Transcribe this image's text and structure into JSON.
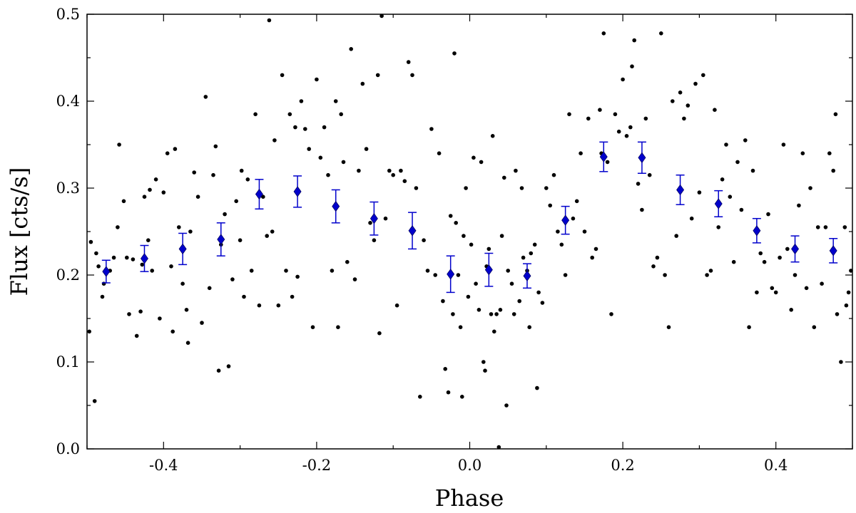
{
  "chart_data": {
    "type": "scatter",
    "xlabel": "Phase",
    "ylabel": "Flux [cts/s]",
    "xlim": [
      -0.5,
      0.5
    ],
    "ylim": [
      0.0,
      0.5
    ],
    "xticks": [
      "-0.4",
      "-0.2",
      "0.0",
      "0.2",
      "0.4"
    ],
    "yticks": [
      "0.0",
      "0.1",
      "0.2",
      "0.3",
      "0.4",
      "0.5"
    ],
    "grid": false,
    "series": [
      {
        "marker": "dot",
        "color": "#000000",
        "points": [
          [
            -0.497,
            0.135
          ],
          [
            -0.495,
            0.238
          ],
          [
            -0.49,
            0.055
          ],
          [
            -0.488,
            0.225
          ],
          [
            -0.485,
            0.21
          ],
          [
            -0.48,
            0.175
          ],
          [
            -0.478,
            0.19
          ],
          [
            -0.47,
            0.205
          ],
          [
            -0.465,
            0.22
          ],
          [
            -0.46,
            0.255
          ],
          [
            -0.458,
            0.35
          ],
          [
            -0.452,
            0.285
          ],
          [
            -0.448,
            0.22
          ],
          [
            -0.445,
            0.155
          ],
          [
            -0.44,
            0.218
          ],
          [
            -0.435,
            0.13
          ],
          [
            -0.43,
            0.158
          ],
          [
            -0.428,
            0.212
          ],
          [
            -0.425,
            0.29
          ],
          [
            -0.42,
            0.24
          ],
          [
            -0.418,
            0.298
          ],
          [
            -0.415,
            0.205
          ],
          [
            -0.41,
            0.31
          ],
          [
            -0.405,
            0.15
          ],
          [
            -0.4,
            0.295
          ],
          [
            -0.395,
            0.34
          ],
          [
            -0.39,
            0.21
          ],
          [
            -0.388,
            0.135
          ],
          [
            -0.385,
            0.345
          ],
          [
            -0.38,
            0.255
          ],
          [
            -0.375,
            0.19
          ],
          [
            -0.37,
            0.16
          ],
          [
            -0.368,
            0.122
          ],
          [
            -0.365,
            0.25
          ],
          [
            -0.36,
            0.318
          ],
          [
            -0.355,
            0.29
          ],
          [
            -0.35,
            0.145
          ],
          [
            -0.345,
            0.405
          ],
          [
            -0.34,
            0.185
          ],
          [
            -0.335,
            0.315
          ],
          [
            -0.332,
            0.348
          ],
          [
            -0.328,
            0.09
          ],
          [
            -0.325,
            0.235
          ],
          [
            -0.32,
            0.27
          ],
          [
            -0.315,
            0.095
          ],
          [
            -0.31,
            0.195
          ],
          [
            -0.305,
            0.285
          ],
          [
            -0.3,
            0.24
          ],
          [
            -0.298,
            0.32
          ],
          [
            -0.295,
            0.175
          ],
          [
            -0.29,
            0.31
          ],
          [
            -0.285,
            0.205
          ],
          [
            -0.28,
            0.385
          ],
          [
            -0.275,
            0.165
          ],
          [
            -0.27,
            0.29
          ],
          [
            -0.265,
            0.245
          ],
          [
            -0.262,
            0.493
          ],
          [
            -0.258,
            0.25
          ],
          [
            -0.255,
            0.355
          ],
          [
            -0.25,
            0.165
          ],
          [
            -0.245,
            0.43
          ],
          [
            -0.24,
            0.205
          ],
          [
            -0.235,
            0.385
          ],
          [
            -0.232,
            0.175
          ],
          [
            -0.228,
            0.37
          ],
          [
            -0.225,
            0.198
          ],
          [
            -0.22,
            0.4
          ],
          [
            -0.215,
            0.368
          ],
          [
            -0.21,
            0.345
          ],
          [
            -0.205,
            0.14
          ],
          [
            -0.2,
            0.425
          ],
          [
            -0.195,
            0.335
          ],
          [
            -0.19,
            0.37
          ],
          [
            -0.185,
            0.315
          ],
          [
            -0.18,
            0.205
          ],
          [
            -0.175,
            0.4
          ],
          [
            -0.172,
            0.14
          ],
          [
            -0.168,
            0.385
          ],
          [
            -0.165,
            0.33
          ],
          [
            -0.16,
            0.215
          ],
          [
            -0.155,
            0.46
          ],
          [
            -0.15,
            0.195
          ],
          [
            -0.145,
            0.32
          ],
          [
            -0.14,
            0.42
          ],
          [
            -0.135,
            0.345
          ],
          [
            -0.13,
            0.26
          ],
          [
            -0.125,
            0.24
          ],
          [
            -0.12,
            0.43
          ],
          [
            -0.118,
            0.133
          ],
          [
            -0.115,
            0.498
          ],
          [
            -0.11,
            0.265
          ],
          [
            -0.105,
            0.32
          ],
          [
            -0.1,
            0.315
          ],
          [
            -0.095,
            0.165
          ],
          [
            -0.09,
            0.32
          ],
          [
            -0.085,
            0.308
          ],
          [
            -0.08,
            0.445
          ],
          [
            -0.075,
            0.43
          ],
          [
            -0.07,
            0.3
          ],
          [
            -0.065,
            0.06
          ],
          [
            -0.06,
            0.24
          ],
          [
            -0.055,
            0.205
          ],
          [
            -0.05,
            0.368
          ],
          [
            -0.045,
            0.2
          ],
          [
            -0.04,
            0.34
          ],
          [
            -0.035,
            0.17
          ],
          [
            -0.032,
            0.092
          ],
          [
            -0.028,
            0.065
          ],
          [
            -0.025,
            0.268
          ],
          [
            -0.022,
            0.155
          ],
          [
            -0.02,
            0.455
          ],
          [
            -0.018,
            0.26
          ],
          [
            -0.015,
            0.2
          ],
          [
            -0.012,
            0.14
          ],
          [
            -0.01,
            0.06
          ],
          [
            -0.008,
            0.245
          ],
          [
            -0.005,
            0.3
          ],
          [
            -0.002,
            0.175
          ],
          [
            0.002,
            0.235
          ],
          [
            0.005,
            0.335
          ],
          [
            0.008,
            0.19
          ],
          [
            0.012,
            0.16
          ],
          [
            0.015,
            0.33
          ],
          [
            0.018,
            0.1
          ],
          [
            0.02,
            0.09
          ],
          [
            0.022,
            0.21
          ],
          [
            0.025,
            0.23
          ],
          [
            0.028,
            0.155
          ],
          [
            0.03,
            0.36
          ],
          [
            0.032,
            0.135
          ],
          [
            0.035,
            0.155
          ],
          [
            0.038,
            0.002
          ],
          [
            0.04,
            0.16
          ],
          [
            0.042,
            0.245
          ],
          [
            0.045,
            0.312
          ],
          [
            0.048,
            0.05
          ],
          [
            0.05,
            0.205
          ],
          [
            0.055,
            0.19
          ],
          [
            0.058,
            0.155
          ],
          [
            0.06,
            0.32
          ],
          [
            0.065,
            0.17
          ],
          [
            0.068,
            0.3
          ],
          [
            0.07,
            0.22
          ],
          [
            0.075,
            0.205
          ],
          [
            0.078,
            0.14
          ],
          [
            0.08,
            0.225
          ],
          [
            0.085,
            0.235
          ],
          [
            0.088,
            0.07
          ],
          [
            0.09,
            0.18
          ],
          [
            0.095,
            0.168
          ],
          [
            0.1,
            0.3
          ],
          [
            0.105,
            0.28
          ],
          [
            0.11,
            0.315
          ],
          [
            0.115,
            0.25
          ],
          [
            0.12,
            0.235
          ],
          [
            0.125,
            0.2
          ],
          [
            0.13,
            0.385
          ],
          [
            0.135,
            0.265
          ],
          [
            0.14,
            0.285
          ],
          [
            0.145,
            0.34
          ],
          [
            0.15,
            0.25
          ],
          [
            0.155,
            0.38
          ],
          [
            0.16,
            0.22
          ],
          [
            0.165,
            0.23
          ],
          [
            0.17,
            0.39
          ],
          [
            0.172,
            0.34
          ],
          [
            0.175,
            0.478
          ],
          [
            0.18,
            0.33
          ],
          [
            0.185,
            0.155
          ],
          [
            0.19,
            0.385
          ],
          [
            0.195,
            0.365
          ],
          [
            0.2,
            0.425
          ],
          [
            0.205,
            0.36
          ],
          [
            0.21,
            0.37
          ],
          [
            0.212,
            0.44
          ],
          [
            0.215,
            0.47
          ],
          [
            0.22,
            0.305
          ],
          [
            0.225,
            0.275
          ],
          [
            0.23,
            0.38
          ],
          [
            0.235,
            0.315
          ],
          [
            0.24,
            0.21
          ],
          [
            0.245,
            0.22
          ],
          [
            0.25,
            0.478
          ],
          [
            0.255,
            0.2
          ],
          [
            0.26,
            0.14
          ],
          [
            0.265,
            0.4
          ],
          [
            0.27,
            0.245
          ],
          [
            0.275,
            0.41
          ],
          [
            0.28,
            0.38
          ],
          [
            0.285,
            0.395
          ],
          [
            0.29,
            0.265
          ],
          [
            0.295,
            0.42
          ],
          [
            0.3,
            0.295
          ],
          [
            0.305,
            0.43
          ],
          [
            0.31,
            0.2
          ],
          [
            0.315,
            0.205
          ],
          [
            0.32,
            0.39
          ],
          [
            0.325,
            0.255
          ],
          [
            0.33,
            0.31
          ],
          [
            0.335,
            0.35
          ],
          [
            0.34,
            0.29
          ],
          [
            0.345,
            0.215
          ],
          [
            0.35,
            0.33
          ],
          [
            0.355,
            0.275
          ],
          [
            0.36,
            0.355
          ],
          [
            0.365,
            0.14
          ],
          [
            0.37,
            0.32
          ],
          [
            0.375,
            0.18
          ],
          [
            0.38,
            0.225
          ],
          [
            0.385,
            0.215
          ],
          [
            0.39,
            0.27
          ],
          [
            0.395,
            0.185
          ],
          [
            0.4,
            0.18
          ],
          [
            0.405,
            0.22
          ],
          [
            0.41,
            0.35
          ],
          [
            0.415,
            0.23
          ],
          [
            0.42,
            0.16
          ],
          [
            0.425,
            0.2
          ],
          [
            0.43,
            0.28
          ],
          [
            0.435,
            0.34
          ],
          [
            0.44,
            0.185
          ],
          [
            0.445,
            0.3
          ],
          [
            0.45,
            0.14
          ],
          [
            0.455,
            0.255
          ],
          [
            0.46,
            0.19
          ],
          [
            0.465,
            0.255
          ],
          [
            0.47,
            0.34
          ],
          [
            0.475,
            0.32
          ],
          [
            0.478,
            0.385
          ],
          [
            0.48,
            0.155
          ],
          [
            0.485,
            0.1
          ],
          [
            0.49,
            0.255
          ],
          [
            0.492,
            0.165
          ],
          [
            0.495,
            0.18
          ],
          [
            0.498,
            0.205
          ]
        ]
      },
      {
        "marker": "diamond",
        "color": "#0000cc",
        "x": [
          -0.475,
          -0.425,
          -0.375,
          -0.325,
          -0.275,
          -0.225,
          -0.175,
          -0.125,
          -0.075,
          -0.025,
          0.025,
          0.075,
          0.125,
          0.175,
          0.225,
          0.275,
          0.325,
          0.375,
          0.425,
          0.475
        ],
        "y": [
          0.204,
          0.219,
          0.23,
          0.241,
          0.293,
          0.296,
          0.279,
          0.265,
          0.251,
          0.201,
          0.206,
          0.199,
          0.263,
          0.336,
          0.335,
          0.298,
          0.282,
          0.251,
          0.23,
          0.228
        ],
        "yerr": [
          0.013,
          0.015,
          0.018,
          0.019,
          0.017,
          0.018,
          0.019,
          0.019,
          0.021,
          0.021,
          0.019,
          0.014,
          0.016,
          0.017,
          0.018,
          0.017,
          0.015,
          0.014,
          0.015,
          0.014
        ]
      }
    ]
  }
}
